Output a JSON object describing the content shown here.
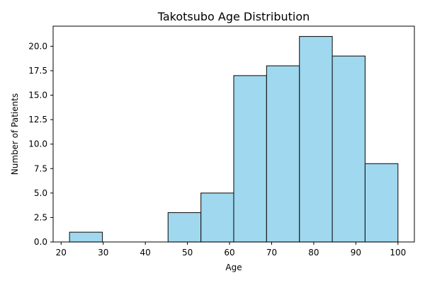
{
  "chart_data": {
    "type": "bar",
    "title": "Takotsubo Age Distribution",
    "xlabel": "Age",
    "ylabel": "Number of Patients",
    "bins": [
      {
        "start": 22.0,
        "end": 29.8,
        "count": 1
      },
      {
        "start": 29.8,
        "end": 37.6,
        "count": 0
      },
      {
        "start": 37.6,
        "end": 45.4,
        "count": 0
      },
      {
        "start": 45.4,
        "end": 53.2,
        "count": 3
      },
      {
        "start": 53.2,
        "end": 61.0,
        "count": 5
      },
      {
        "start": 61.0,
        "end": 68.8,
        "count": 17
      },
      {
        "start": 68.8,
        "end": 76.6,
        "count": 18
      },
      {
        "start": 76.6,
        "end": 84.4,
        "count": 21
      },
      {
        "start": 84.4,
        "end": 92.2,
        "count": 19
      },
      {
        "start": 92.2,
        "end": 100.0,
        "count": 8
      }
    ],
    "xlim": [
      18.1,
      103.9
    ],
    "ylim": [
      0,
      22.05
    ],
    "xticks": [
      20,
      30,
      40,
      50,
      60,
      70,
      80,
      90,
      100
    ],
    "xtick_labels": [
      "20",
      "30",
      "40",
      "50",
      "60",
      "70",
      "80",
      "90",
      "100"
    ],
    "yticks": [
      0,
      2.5,
      5,
      7.5,
      10,
      12.5,
      15,
      17.5,
      20
    ],
    "ytick_labels": [
      "0.0",
      "2.5",
      "5.0",
      "7.5",
      "10.0",
      "12.5",
      "15.0",
      "17.5",
      "20.0"
    ],
    "bar_color": "#87CEEB",
    "edge_color": "#1a1a1a",
    "grid": false,
    "legend": "none"
  }
}
